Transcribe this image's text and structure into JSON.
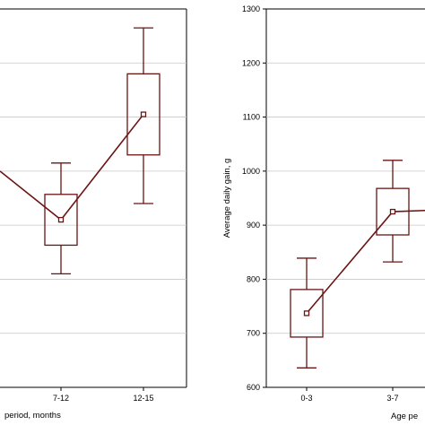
{
  "colors": {
    "series": "#6b1414",
    "axis": "#000000",
    "grid": "#c8c8c8"
  },
  "chart_data": [
    {
      "type": "box",
      "xlabel": "period, months",
      "ylabel": "",
      "categories": [
        "7-12",
        "12-15"
      ],
      "grid": true,
      "series": [
        {
          "points": [
            {
              "category": "7-12",
              "mean": 910,
              "box_low": 863,
              "box_high": 957,
              "whisker_low": 810,
              "whisker_high": 1015
            },
            {
              "category": "12-15",
              "mean": 1105,
              "box_low": 1030,
              "box_high": 1180,
              "whisker_low": 940,
              "whisker_high": 1265
            }
          ],
          "line_entry_from_left": 1000
        }
      ]
    },
    {
      "type": "box",
      "xlabel": "Age pe",
      "ylabel": "Average daily gain, g",
      "ylim": [
        600,
        1300
      ],
      "yticks": [
        600,
        700,
        800,
        900,
        1000,
        1100,
        1200,
        1300
      ],
      "categories": [
        "0-3",
        "3-7"
      ],
      "grid": true,
      "series": [
        {
          "points": [
            {
              "category": "0-3",
              "mean": 737,
              "box_low": 693,
              "box_high": 781,
              "whisker_low": 636,
              "whisker_high": 839
            },
            {
              "category": "3-7",
              "mean": 925,
              "box_low": 882,
              "box_high": 968,
              "whisker_low": 832,
              "whisker_high": 1020
            }
          ],
          "line_exit_to_right": 928
        }
      ]
    }
  ]
}
